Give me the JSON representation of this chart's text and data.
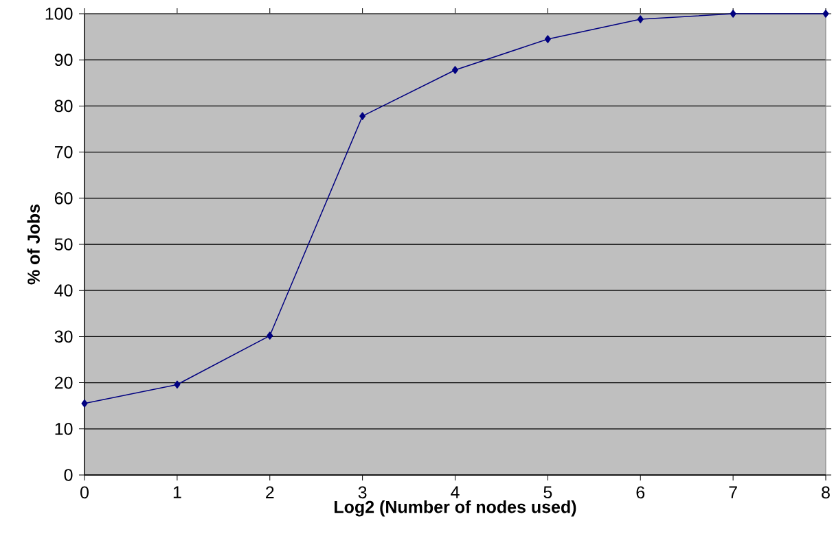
{
  "chart_data": {
    "type": "line",
    "xlabel": "Log2 (Number of nodes used)",
    "ylabel": "% of Jobs",
    "x": [
      0,
      1,
      2,
      3,
      4,
      5,
      6,
      7,
      8
    ],
    "values": [
      15.5,
      19.6,
      30.2,
      77.8,
      87.8,
      94.5,
      98.8,
      100,
      100
    ],
    "color": "#000080",
    "marker": "diamond",
    "xlim": [
      0,
      8
    ],
    "ylim": [
      0,
      100
    ],
    "xticks": [
      0,
      1,
      2,
      3,
      4,
      5,
      6,
      7,
      8
    ],
    "yticks": [
      0,
      10,
      20,
      30,
      40,
      50,
      60,
      70,
      80,
      90,
      100
    ],
    "grid": "y"
  }
}
